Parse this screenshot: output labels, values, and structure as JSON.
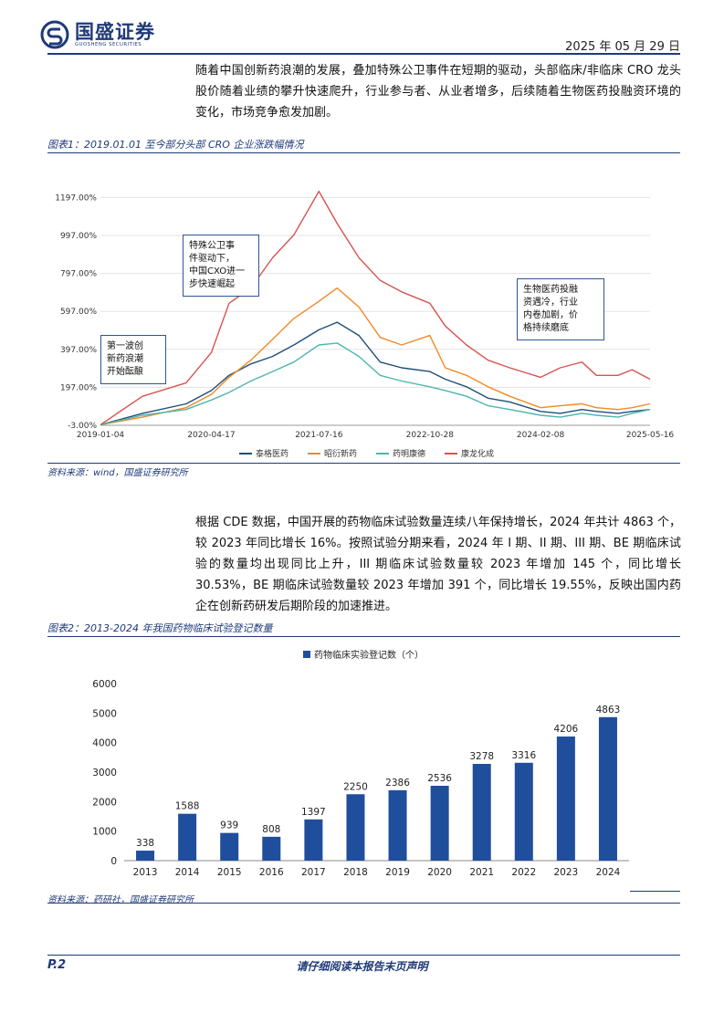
{
  "header": {
    "company": "国盛证券",
    "company_en": "GUOSHENG SECURITIES",
    "date": "2025 年 05 月 29 日"
  },
  "para1": "随着中国创新药浪潮的发展，叠加特殊公卫事件在短期的驱动，头部临床/非临床 CRO 龙头股价随着业绩的攀升快速爬升，行业参与者、从业者增多，后续随着生物医药投融资环境的变化，市场竞争愈发加剧。",
  "fig1": {
    "title": "图表1：2019.01.01 至今部分头部 CRO 企业涨跌幅情况",
    "source": "资料来源：wind，国盛证券研究所",
    "annotations": [
      "第一波创\n新药浪潮\n开始酝酿",
      "特殊公卫事\n件驱动下，\n中国CXO进一\n步快速崛起",
      "生物医药投融\n资遇冷，行业\n内卷加剧，价\n格持续磨底"
    ]
  },
  "para2": "根据 CDE 数据，中国开展的药物临床试验数量连续八年保持增长，2024 年共计 4863 个，较 2023 年同比增长 16%。按照试验分期来看，2024 年 I 期、II 期、III 期、BE 期临床试验的数量均出现同比上升，III 期临床试验数量较 2023 年增加 145 个，同比增长 30.53%，BE 期临床试验数量较 2023 年增加 391 个，同比增长 19.55%，反映出国内药企在创新药研发后期阶段的加速推进。",
  "fig2": {
    "title": "图表2：2013-2024 年我国药物临床试验登记数量",
    "source": "资料来源：药研社，国盛证券研究所"
  },
  "footer": {
    "page": "P.2",
    "disclaimer": "请仔细阅读本报告末页声明"
  },
  "chart_data": [
    {
      "type": "line",
      "y_ticks": [
        "1197.00%",
        "997.00%",
        "797.00%",
        "597.00%",
        "397.00%",
        "197.00%",
        "-3.00%"
      ],
      "ylim": [
        -3,
        1300
      ],
      "x_ticks": [
        "2019-01-04",
        "2020-04-17",
        "2021-07-16",
        "2022-10-28",
        "2024-02-08",
        "2025-05-16"
      ],
      "x": [
        "2019-01-04",
        "2019-07-01",
        "2020-01-01",
        "2020-04-17",
        "2020-07-01",
        "2020-10-01",
        "2021-01-01",
        "2021-04-01",
        "2021-07-16",
        "2021-10-01",
        "2022-01-01",
        "2022-04-01",
        "2022-07-01",
        "2022-10-28",
        "2023-01-01",
        "2023-04-01",
        "2023-07-01",
        "2023-10-01",
        "2024-02-08",
        "2024-05-01",
        "2024-08-01",
        "2024-10-01",
        "2025-01-01",
        "2025-03-01",
        "2025-05-16"
      ],
      "series": [
        {
          "name": "泰格医药",
          "color": "#1f4e79",
          "values": [
            0,
            60,
            110,
            180,
            260,
            320,
            360,
            420,
            500,
            540,
            470,
            330,
            300,
            280,
            240,
            200,
            140,
            120,
            70,
            60,
            80,
            70,
            60,
            70,
            80
          ]
        },
        {
          "name": "昭衍新药",
          "color": "#f08a24",
          "values": [
            0,
            40,
            90,
            160,
            250,
            340,
            450,
            560,
            650,
            720,
            620,
            460,
            420,
            470,
            300,
            260,
            200,
            150,
            90,
            100,
            110,
            90,
            80,
            90,
            110
          ]
        },
        {
          "name": "药明康德",
          "color": "#4db6ac",
          "values": [
            0,
            50,
            80,
            130,
            170,
            230,
            280,
            330,
            420,
            430,
            360,
            260,
            230,
            200,
            180,
            150,
            100,
            80,
            50,
            40,
            60,
            50,
            40,
            60,
            80
          ]
        },
        {
          "name": "康龙化成",
          "color": "#d9534f",
          "values": [
            0,
            150,
            220,
            380,
            640,
            720,
            880,
            1000,
            1230,
            1060,
            880,
            760,
            700,
            640,
            520,
            420,
            340,
            300,
            250,
            300,
            330,
            260,
            260,
            290,
            240
          ]
        }
      ]
    },
    {
      "type": "bar",
      "title": "药物临床实验登记数（个）",
      "categories": [
        "2013",
        "2014",
        "2015",
        "2016",
        "2017",
        "2018",
        "2019",
        "2020",
        "2021",
        "2022",
        "2023",
        "2024"
      ],
      "values": [
        338,
        1588,
        939,
        808,
        1397,
        2250,
        2386,
        2536,
        3278,
        3316,
        4206,
        4863
      ],
      "ylim": [
        0,
        6000
      ],
      "y_ticks": [
        "6000",
        "5000",
        "4000",
        "3000",
        "2000",
        "1000",
        "0"
      ],
      "color": "#1f4e9c"
    }
  ]
}
